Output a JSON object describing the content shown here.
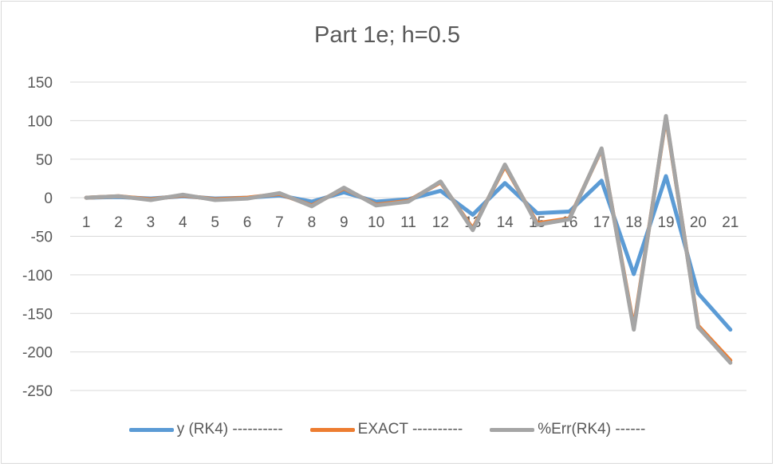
{
  "chart_data": {
    "type": "line",
    "title": "Part 1e; h=0.5",
    "xlabel": "",
    "ylabel": "",
    "categories": [
      "1",
      "2",
      "3",
      "4",
      "5",
      "6",
      "7",
      "8",
      "9",
      "10",
      "11",
      "12",
      "13",
      "14",
      "15",
      "16",
      "17",
      "18",
      "19",
      "20",
      "21"
    ],
    "ylim": [
      -250,
      150
    ],
    "yticks": [
      150,
      100,
      50,
      0,
      -50,
      -100,
      -150,
      -200,
      -250
    ],
    "grid": true,
    "legend_position": "bottom",
    "series": [
      {
        "name": "y (RK4) ----------",
        "color": "#5b9bd5",
        "values": [
          0,
          1,
          -1,
          2,
          -1,
          0,
          3,
          -5,
          7,
          -5,
          -2,
          9,
          -22,
          19,
          -20,
          -18,
          22,
          -99,
          28,
          -124,
          -171
        ]
      },
      {
        "name": "EXACT ----------",
        "color": "#ed7d31",
        "values": [
          0,
          2,
          -2,
          3,
          -2,
          0,
          5,
          -10,
          12,
          -9,
          -4,
          20,
          -40,
          41,
          -33,
          -27,
          63,
          -168,
          104,
          -166,
          -211
        ]
      },
      {
        "name": "%Err(RK4) ------",
        "color": "#a5a5a5",
        "values": [
          0,
          2,
          -3,
          4,
          -3,
          -1,
          6,
          -11,
          13,
          -10,
          -5,
          21,
          -42,
          43,
          -35,
          -28,
          64,
          -171,
          106,
          -168,
          -214
        ]
      }
    ]
  }
}
